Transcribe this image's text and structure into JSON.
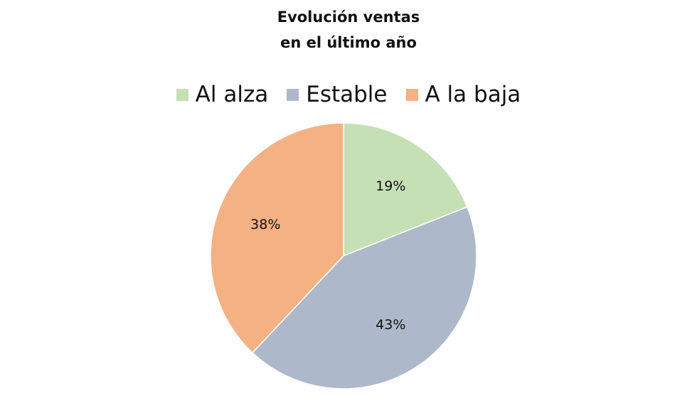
{
  "chart_data": {
    "type": "pie",
    "title_lines": [
      "Evolución ventas",
      "en el último año"
    ],
    "categories": [
      "Al alza",
      "Estable",
      "A la baja"
    ],
    "values": [
      19,
      43,
      38
    ],
    "labels": [
      "19%",
      "43%",
      "38%"
    ],
    "colors": [
      "#c5e0b4",
      "#adb9ca",
      "#f4b183"
    ],
    "legend_position": "top",
    "start_angle": "12 o'clock",
    "direction": "clockwise"
  }
}
